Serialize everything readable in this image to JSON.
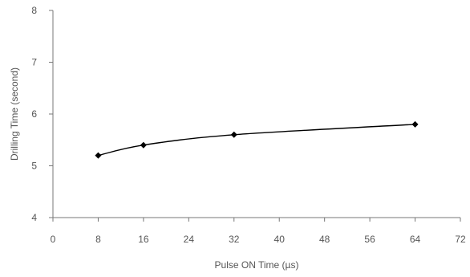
{
  "chart_data": {
    "type": "line",
    "title": "",
    "xlabel": "Pulse ON Time (µs)",
    "ylabel": "Drilling Time (second)",
    "xlim": [
      0,
      72
    ],
    "ylim": [
      4,
      8
    ],
    "xticks": [
      0,
      8,
      16,
      24,
      32,
      40,
      48,
      56,
      64,
      72
    ],
    "yticks": [
      4,
      5,
      6,
      7,
      8
    ],
    "grid": false,
    "legend": "none",
    "series": [
      {
        "color": "#000000",
        "marker": "diamond",
        "points": [
          {
            "x": 8,
            "y": 5.2
          },
          {
            "x": 16,
            "y": 5.4
          },
          {
            "x": 32,
            "y": 5.6
          },
          {
            "x": 64,
            "y": 5.8
          }
        ]
      }
    ]
  }
}
